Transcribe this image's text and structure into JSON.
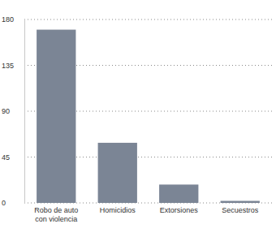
{
  "chart_data": {
    "type": "bar",
    "categories": [
      "Robo de auto con violencia",
      "Homicidios",
      "Extorsiones",
      "Secuestros"
    ],
    "values": [
      170,
      59,
      18,
      2
    ],
    "color": "#7b8595",
    "ylim": [
      0,
      180
    ],
    "yticks": [
      0,
      45,
      90,
      135,
      180
    ],
    "grid": true
  }
}
